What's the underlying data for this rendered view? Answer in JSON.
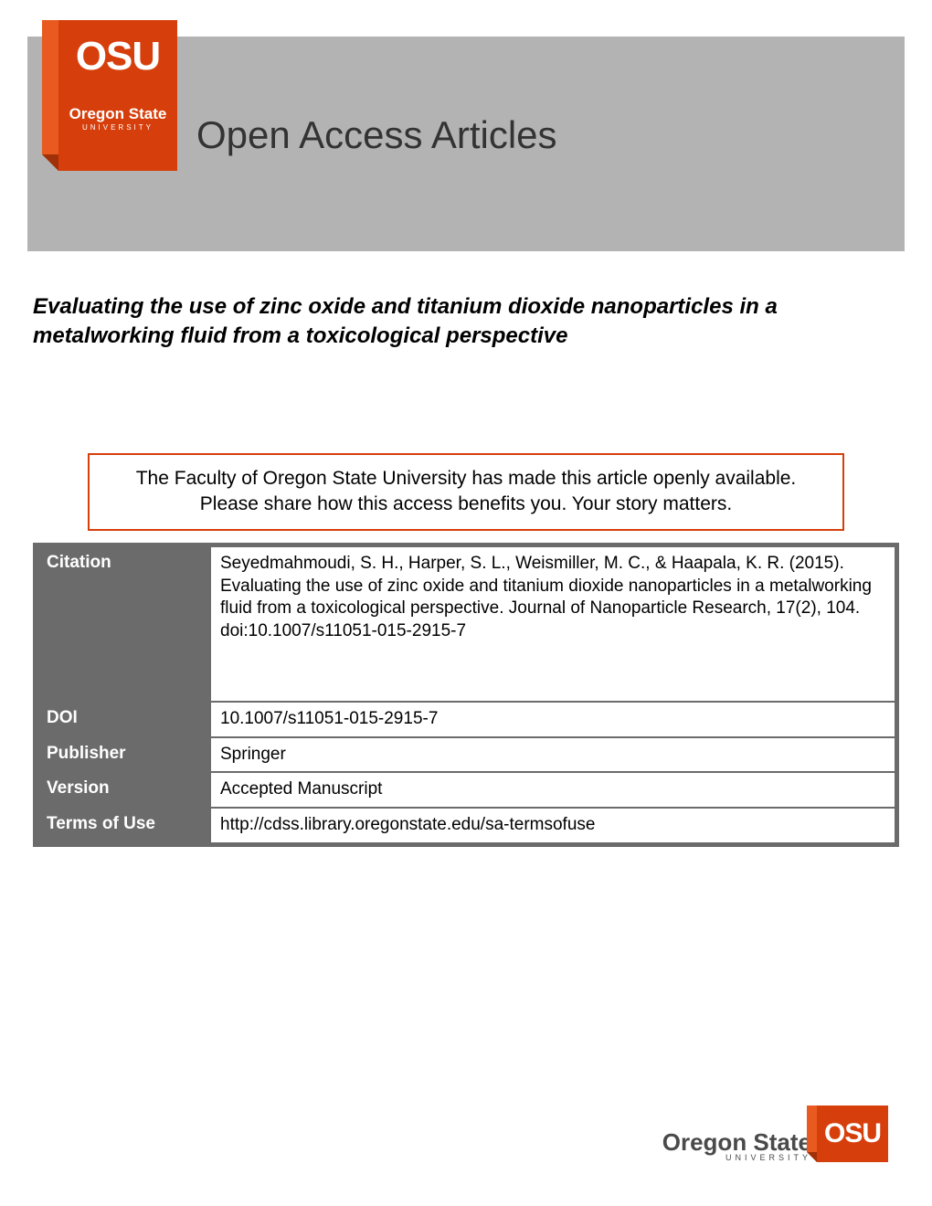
{
  "header": {
    "logo_abbrev": "OSU",
    "logo_line1": "Oregon State",
    "logo_line2": "UNIVERSITY",
    "banner_title": "Open Access Articles",
    "banner_bg": "#b3b3b3",
    "logo_bg": "#d63f0c"
  },
  "article": {
    "title": "Evaluating the use of zinc oxide and titanium dioxide nanoparticles in a metalworking fluid from a toxicological perspective"
  },
  "notice": {
    "line1": "The Faculty of Oregon State University has made this article openly available.",
    "line2": "Please share how this access benefits you. Your story matters.",
    "border_color": "#d63f0c"
  },
  "meta": {
    "rows": [
      {
        "label": "Citation",
        "value": "Seyedmahmoudi, S. H., Harper, S. L., Weismiller, M. C., & Haapala, K. R. (2015). Evaluating the use of zinc oxide and titanium dioxide nanoparticles in a metalworking fluid from a toxicological perspective. Journal of Nanoparticle Research, 17(2), 104. doi:10.1007/s11051-015-2915-7"
      },
      {
        "label": "DOI",
        "value": "10.1007/s11051-015-2915-7"
      },
      {
        "label": "Publisher",
        "value": "Springer"
      },
      {
        "label": "Version",
        "value": "Accepted Manuscript"
      },
      {
        "label": "Terms of Use",
        "value": "http://cdss.library.oregonstate.edu/sa-termsofuse"
      }
    ],
    "label_bg": "#6b6b6b",
    "border_color": "#6b6b6b"
  },
  "footer": {
    "text_main": "Oregon State",
    "text_sub": "UNIVERSITY",
    "block_text": "OSU",
    "block_bg": "#d63f0c"
  }
}
